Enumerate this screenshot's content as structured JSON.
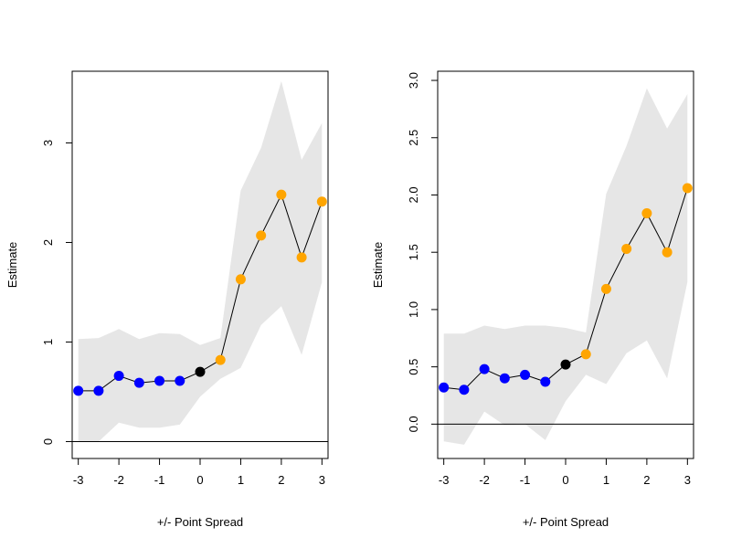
{
  "chart_data": [
    {
      "type": "line",
      "title": "",
      "xlabel": "+/- Point Spread",
      "ylabel": "Estimate",
      "xlim": [
        -3.15,
        3.15
      ],
      "ylim": [
        -0.17,
        3.72
      ],
      "x_ticks": [
        -3,
        -2,
        -1,
        0,
        1,
        2,
        3
      ],
      "y_ticks": [
        0,
        1,
        2,
        3
      ],
      "y_tick_labels": [
        "0",
        "1",
        "2",
        "3"
      ],
      "reference_line_y": 0,
      "grid": false,
      "x": [
        -3,
        -2.5,
        -2,
        -1.5,
        -1,
        -0.5,
        0,
        0.5,
        1,
        1.5,
        2,
        2.5,
        3
      ],
      "estimate": [
        0.51,
        0.51,
        0.66,
        0.59,
        0.61,
        0.61,
        0.7,
        0.82,
        1.63,
        2.07,
        2.48,
        1.85,
        2.41
      ],
      "ci_lower": [
        0.0,
        0.0,
        0.19,
        0.14,
        0.14,
        0.17,
        0.45,
        0.63,
        0.74,
        1.17,
        1.36,
        0.87,
        1.6
      ],
      "ci_upper": [
        1.03,
        1.04,
        1.13,
        1.03,
        1.09,
        1.08,
        0.97,
        1.04,
        2.52,
        2.95,
        3.62,
        2.83,
        3.2
      ],
      "point_colors": [
        "#0000ff",
        "#0000ff",
        "#0000ff",
        "#0000ff",
        "#0000ff",
        "#0000ff",
        "#000000",
        "#ffa500",
        "#ffa500",
        "#ffa500",
        "#ffa500",
        "#ffa500",
        "#ffa500"
      ],
      "band_color": "#e6e6e6"
    },
    {
      "type": "line",
      "title": "",
      "xlabel": "+/- Point Spread",
      "ylabel": "Estimate",
      "xlim": [
        -3.15,
        3.15
      ],
      "ylim": [
        -0.3,
        3.08
      ],
      "x_ticks": [
        -3,
        -2,
        -1,
        0,
        1,
        2,
        3
      ],
      "y_ticks": [
        0,
        0.5,
        1,
        1.5,
        2,
        2.5,
        3
      ],
      "y_tick_labels": [
        "0.0",
        "0.5",
        "1.0",
        "1.5",
        "2.0",
        "2.5",
        "3.0"
      ],
      "reference_line_y": 0,
      "grid": false,
      "x": [
        -3,
        -2.5,
        -2,
        -1.5,
        -1,
        -0.5,
        0,
        0.5,
        1,
        1.5,
        2,
        2.5,
        3
      ],
      "estimate": [
        0.32,
        0.3,
        0.48,
        0.4,
        0.43,
        0.37,
        0.52,
        0.61,
        1.18,
        1.53,
        1.84,
        1.5,
        2.06
      ],
      "ci_lower": [
        -0.15,
        -0.18,
        0.11,
        -0.01,
        0.0,
        -0.14,
        0.2,
        0.43,
        0.35,
        0.62,
        0.73,
        0.4,
        1.24
      ],
      "ci_upper": [
        0.79,
        0.79,
        0.86,
        0.83,
        0.86,
        0.86,
        0.84,
        0.8,
        2.01,
        2.43,
        2.93,
        2.58,
        2.88
      ],
      "point_colors": [
        "#0000ff",
        "#0000ff",
        "#0000ff",
        "#0000ff",
        "#0000ff",
        "#0000ff",
        "#000000",
        "#ffa500",
        "#ffa500",
        "#ffa500",
        "#ffa500",
        "#ffa500",
        "#ffa500"
      ],
      "band_color": "#e6e6e6"
    }
  ]
}
